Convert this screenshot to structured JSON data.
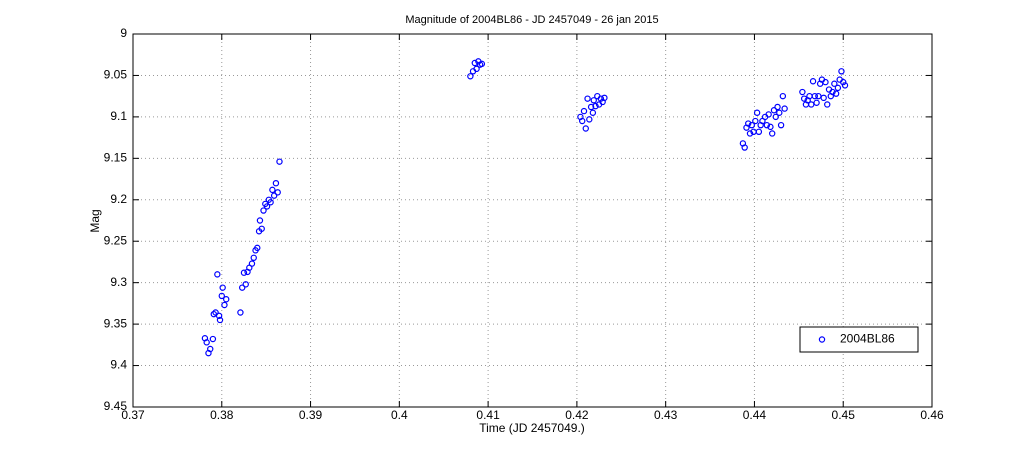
{
  "chart_data": {
    "type": "scatter",
    "title": "Magnitude of 2004BL86 - JD 2457049 - 26 jan 2015",
    "xlabel": "Time (JD 2457049.)",
    "ylabel": "Mag",
    "x": [
      0.3781,
      0.3783,
      0.3785,
      0.3787,
      0.379,
      0.3791,
      0.3793,
      0.3795,
      0.3797,
      0.3798,
      0.38,
      0.3801,
      0.3803,
      0.3805,
      0.3821,
      0.3823,
      0.3825,
      0.3827,
      0.3829,
      0.3831,
      0.3834,
      0.3836,
      0.3838,
      0.384,
      0.3842,
      0.3843,
      0.3845,
      0.3847,
      0.3849,
      0.3851,
      0.3853,
      0.3855,
      0.3857,
      0.3859,
      0.3861,
      0.3863,
      0.3865,
      0.408,
      0.4083,
      0.4085,
      0.4087,
      0.4089,
      0.4091,
      0.4093,
      0.4204,
      0.4206,
      0.4208,
      0.421,
      0.4212,
      0.4214,
      0.4216,
      0.4218,
      0.4219,
      0.4221,
      0.4223,
      0.4225,
      0.4227,
      0.4229,
      0.4231,
      0.4387,
      0.4389,
      0.4391,
      0.4393,
      0.4395,
      0.4397,
      0.4399,
      0.4401,
      0.4403,
      0.4405,
      0.4407,
      0.4409,
      0.4412,
      0.4414,
      0.4416,
      0.4418,
      0.442,
      0.4422,
      0.4424,
      0.4426,
      0.4428,
      0.443,
      0.4432,
      0.4434,
      0.4454,
      0.4456,
      0.4458,
      0.446,
      0.4462,
      0.4464,
      0.4466,
      0.4468,
      0.447,
      0.4472,
      0.4474,
      0.4476,
      0.4478,
      0.448,
      0.4482,
      0.4484,
      0.4486,
      0.4488,
      0.449,
      0.4492,
      0.4494,
      0.4496,
      0.4498,
      0.45,
      0.4502
    ],
    "series": [
      {
        "name": "2004BL86",
        "color": "#0000ff",
        "values": [
          9.367,
          9.372,
          9.385,
          9.38,
          9.368,
          9.338,
          9.336,
          9.29,
          9.34,
          9.345,
          9.316,
          9.306,
          9.327,
          9.32,
          9.336,
          9.306,
          9.288,
          9.302,
          9.287,
          9.282,
          9.277,
          9.27,
          9.261,
          9.258,
          9.238,
          9.225,
          9.235,
          9.213,
          9.205,
          9.208,
          9.2,
          9.203,
          9.188,
          9.195,
          9.18,
          9.191,
          9.154,
          9.051,
          9.045,
          9.035,
          9.042,
          9.033,
          9.037,
          9.036,
          9.1,
          9.105,
          9.093,
          9.114,
          9.078,
          9.103,
          9.088,
          9.095,
          9.08,
          9.087,
          9.075,
          9.085,
          9.078,
          9.082,
          9.077,
          9.132,
          9.137,
          9.113,
          9.108,
          9.12,
          9.11,
          9.118,
          9.105,
          9.095,
          9.118,
          9.11,
          9.105,
          9.1,
          9.11,
          9.097,
          9.112,
          9.12,
          9.092,
          9.1,
          9.088,
          9.095,
          9.11,
          9.075,
          9.09,
          9.07,
          9.078,
          9.085,
          9.08,
          9.075,
          9.085,
          9.057,
          9.075,
          9.083,
          9.075,
          9.06,
          9.055,
          9.077,
          9.058,
          9.085,
          9.067,
          9.075,
          9.07,
          9.06,
          9.072,
          9.065,
          9.055,
          9.045,
          9.058,
          9.062
        ]
      }
    ],
    "xlim": [
      0.37,
      0.46
    ],
    "xticks": [
      0.37,
      0.38,
      0.39,
      0.4,
      0.41,
      0.42,
      0.43,
      0.44,
      0.45,
      0.46
    ],
    "ylim": [
      9,
      9.45
    ],
    "yticks": [
      9,
      9.05,
      9.1,
      9.15,
      9.2,
      9.25,
      9.3,
      9.35,
      9.4,
      9.45
    ],
    "y_reversed": true,
    "grid": true,
    "legend": "lower right"
  }
}
